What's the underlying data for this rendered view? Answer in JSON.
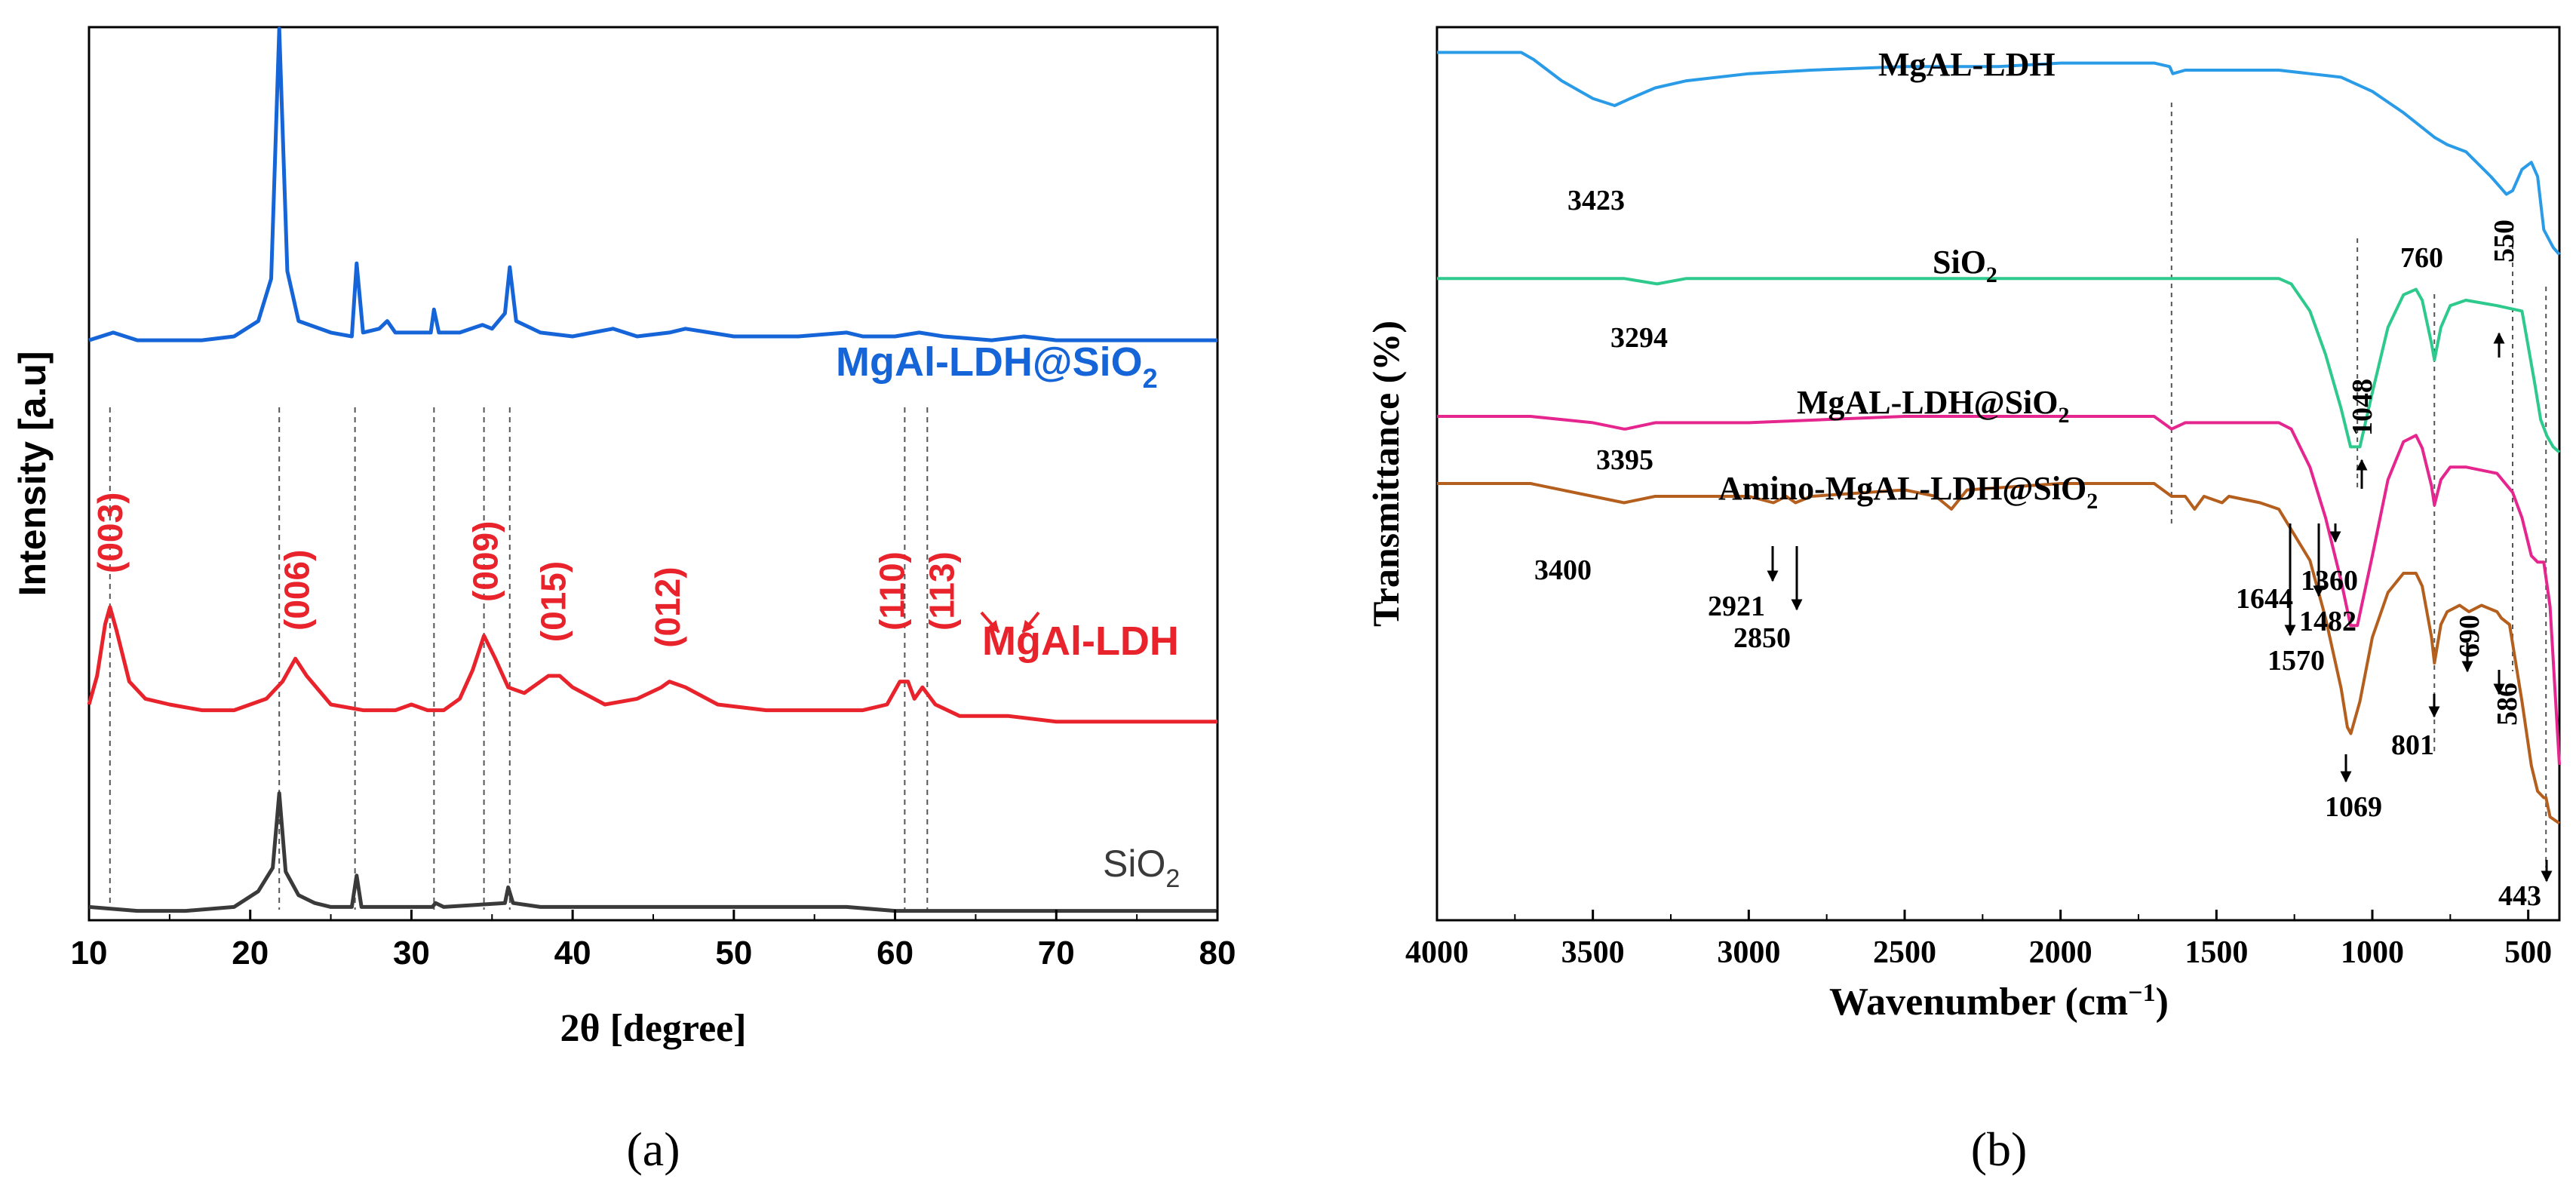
{
  "colors": {
    "blue": "#1565d8",
    "red": "#e8232b",
    "dark": "#3a3a3a",
    "sky": "#2a9be6",
    "green": "#2ec98c",
    "magenta": "#e6268f",
    "brown": "#b45f1e",
    "peak_label": "#e8232b"
  },
  "chart_data": [
    {
      "type": "line",
      "panel_label": "(a)",
      "xlabel_sym": "2θ",
      "xlabel_rest": " [degree]",
      "ylabel": "Intensity [a.u]",
      "xlim": [
        10,
        80
      ],
      "xticks": [
        "10",
        "20",
        "30",
        "40",
        "50",
        "60",
        "70",
        "80"
      ],
      "y_ticks": "none",
      "series": [
        {
          "name": "MgAl-LDH@SiO₂",
          "color": "blue",
          "x": [
            10,
            11.5,
            13,
            15,
            17,
            19,
            20.5,
            21.3,
            21.8,
            22.3,
            23,
            25,
            26.3,
            26.6,
            27,
            28,
            28.5,
            29,
            30,
            31.2,
            31.4,
            31.7,
            33,
            34.4,
            35,
            35.8,
            36.1,
            36.5,
            38,
            40,
            42.5,
            44,
            46,
            47,
            48.5,
            50,
            52,
            54,
            57,
            58,
            60,
            61.5,
            63,
            66,
            68,
            70,
            75,
            80
          ],
          "y": [
            0.19,
            0.21,
            0.19,
            0.19,
            0.19,
            0.2,
            0.24,
            0.35,
            1.0,
            0.37,
            0.24,
            0.21,
            0.2,
            0.39,
            0.21,
            0.22,
            0.24,
            0.21,
            0.21,
            0.21,
            0.27,
            0.21,
            0.21,
            0.23,
            0.22,
            0.26,
            0.38,
            0.24,
            0.21,
            0.2,
            0.22,
            0.2,
            0.21,
            0.22,
            0.21,
            0.2,
            0.2,
            0.2,
            0.21,
            0.2,
            0.2,
            0.21,
            0.2,
            0.19,
            0.2,
            0.19,
            0.19,
            0.19
          ]
        },
        {
          "name": "MgAl-LDH",
          "color": "red",
          "x": [
            10,
            10.5,
            11,
            11.3,
            11.7,
            12.5,
            13.5,
            15,
            17,
            19,
            20,
            21,
            22,
            22.8,
            23.5,
            25,
            27,
            29,
            30,
            31,
            32,
            33,
            33.8,
            34.5,
            35.2,
            36,
            37,
            38.5,
            39.2,
            40,
            42,
            44,
            45.5,
            46,
            47,
            49,
            52,
            55,
            58,
            59.5,
            60.3,
            60.8,
            61.2,
            61.7,
            62.5,
            64,
            67,
            70,
            75,
            80
          ],
          "y": [
            0.2,
            0.25,
            0.34,
            0.37,
            0.33,
            0.24,
            0.21,
            0.2,
            0.19,
            0.19,
            0.2,
            0.21,
            0.24,
            0.28,
            0.25,
            0.2,
            0.19,
            0.19,
            0.2,
            0.19,
            0.19,
            0.21,
            0.26,
            0.32,
            0.28,
            0.23,
            0.22,
            0.25,
            0.25,
            0.23,
            0.2,
            0.21,
            0.23,
            0.24,
            0.23,
            0.2,
            0.19,
            0.19,
            0.19,
            0.2,
            0.24,
            0.24,
            0.21,
            0.23,
            0.2,
            0.18,
            0.18,
            0.17,
            0.17,
            0.17
          ]
        },
        {
          "name": "SiO₂",
          "color": "dark",
          "x": [
            10,
            13,
            16,
            19,
            20.5,
            21.4,
            21.8,
            22.2,
            23,
            24,
            25,
            26.3,
            26.6,
            26.9,
            28,
            31.3,
            31.5,
            32,
            35.8,
            36,
            36.3,
            38,
            42.5,
            45,
            50,
            57,
            60,
            65,
            70,
            75,
            80
          ],
          "y": [
            0.03,
            0.02,
            0.02,
            0.03,
            0.07,
            0.13,
            0.32,
            0.12,
            0.06,
            0.04,
            0.03,
            0.03,
            0.11,
            0.03,
            0.03,
            0.03,
            0.04,
            0.03,
            0.04,
            0.08,
            0.04,
            0.03,
            0.03,
            0.03,
            0.03,
            0.03,
            0.02,
            0.02,
            0.02,
            0.02,
            0.02
          ]
        }
      ],
      "series_labels": [
        {
          "text": "MgAl-LDH@SiO",
          "sub": "2",
          "color": "blue"
        },
        {
          "text": "MgAl-LDH",
          "sub": "",
          "color": "red"
        },
        {
          "text": "SiO",
          "sub": "2",
          "color": "dark"
        }
      ],
      "guide_lines_x": [
        11.3,
        21.8,
        26.5,
        31.4,
        34.5,
        36.1,
        60.6,
        62.0
      ],
      "peak_labels": [
        {
          "text": "(003)",
          "x": 11.3,
          "y": 0.4
        },
        {
          "text": "(006)",
          "x": 22.9,
          "y": 0.3
        },
        {
          "text": "(009)",
          "x": 34.6,
          "y": 0.35
        },
        {
          "text": "(015)",
          "x": 38.8,
          "y": 0.28
        },
        {
          "text": "(012)",
          "x": 45.9,
          "y": 0.27
        },
        {
          "text": "(110)",
          "x": 59.8,
          "y": 0.3
        },
        {
          "text": "(113)",
          "x": 62.9,
          "y": 0.3
        }
      ]
    },
    {
      "type": "line",
      "panel_label": "(b)",
      "xlabel": "Wavenumber (cm",
      "xlabel_sup": "−1",
      "xlabel_end": ")",
      "ylabel": "Transmittance (%)",
      "xlim": [
        4000,
        400
      ],
      "xticks": [
        "4000",
        "3500",
        "3000",
        "2500",
        "2000",
        "1500",
        "1000",
        "500"
      ],
      "y_ticks": "none",
      "series": [
        {
          "name": "MgAL-LDH",
          "color": "sky",
          "x": [
            4000,
            3730,
            3690,
            3600,
            3500,
            3430,
            3380,
            3300,
            3200,
            3000,
            2800,
            2500,
            2200,
            2000,
            1800,
            1700,
            1650,
            1640,
            1600,
            1300,
            1200,
            1100,
            1000,
            900,
            800,
            760,
            700,
            620,
            570,
            550,
            520,
            490,
            470,
            450,
            420,
            400
          ],
          "y": [
            0.95,
            0.95,
            0.93,
            0.87,
            0.82,
            0.8,
            0.82,
            0.85,
            0.87,
            0.89,
            0.9,
            0.91,
            0.91,
            0.92,
            0.92,
            0.92,
            0.91,
            0.89,
            0.9,
            0.9,
            0.89,
            0.88,
            0.84,
            0.78,
            0.71,
            0.69,
            0.67,
            0.6,
            0.55,
            0.56,
            0.62,
            0.64,
            0.6,
            0.45,
            0.4,
            0.38
          ]
        },
        {
          "name": "SiO₂",
          "color": "green",
          "x": [
            4000,
            3600,
            3400,
            3294,
            3200,
            3000,
            2500,
            2000,
            1500,
            1300,
            1260,
            1200,
            1150,
            1100,
            1070,
            1040,
            1000,
            950,
            900,
            860,
            840,
            810,
            801,
            780,
            750,
            700,
            600,
            520,
            480,
            460,
            440,
            420,
            400
          ],
          "y": [
            0.69,
            0.69,
            0.69,
            0.68,
            0.69,
            0.69,
            0.69,
            0.69,
            0.69,
            0.69,
            0.68,
            0.63,
            0.55,
            0.45,
            0.38,
            0.38,
            0.48,
            0.6,
            0.66,
            0.67,
            0.65,
            0.57,
            0.54,
            0.6,
            0.64,
            0.65,
            0.64,
            0.63,
            0.5,
            0.43,
            0.4,
            0.38,
            0.37
          ]
        },
        {
          "name": "MgAL-LDH@SiO₂",
          "color": "magenta",
          "x": [
            4000,
            3700,
            3500,
            3400,
            3395,
            3300,
            3000,
            2500,
            2000,
            1700,
            1644,
            1600,
            1300,
            1260,
            1200,
            1150,
            1100,
            1070,
            1048,
            1000,
            950,
            900,
            860,
            840,
            810,
            801,
            780,
            750,
            700,
            600,
            550,
            520,
            490,
            470,
            450,
            430,
            400
          ],
          "y": [
            0.6,
            0.6,
            0.59,
            0.58,
            0.58,
            0.59,
            0.59,
            0.6,
            0.6,
            0.6,
            0.58,
            0.59,
            0.59,
            0.58,
            0.52,
            0.44,
            0.34,
            0.27,
            0.27,
            0.38,
            0.5,
            0.56,
            0.57,
            0.55,
            0.49,
            0.46,
            0.5,
            0.52,
            0.52,
            0.51,
            0.48,
            0.44,
            0.38,
            0.37,
            0.37,
            0.3,
            0.05
          ]
        },
        {
          "name": "Amino-MgAL-LDH@SiO₂",
          "color": "brown",
          "x": [
            4000,
            3700,
            3500,
            3400,
            3300,
            3000,
            2921,
            2880,
            2850,
            2800,
            2500,
            2400,
            2350,
            2300,
            2000,
            1700,
            1644,
            1600,
            1570,
            1540,
            1482,
            1460,
            1360,
            1300,
            1200,
            1150,
            1100,
            1080,
            1069,
            1040,
            1000,
            950,
            900,
            860,
            840,
            810,
            801,
            780,
            760,
            720,
            690,
            650,
            600,
            586,
            560,
            520,
            490,
            470,
            450,
            443,
            430,
            400
          ],
          "y": [
            0.54,
            0.54,
            0.52,
            0.51,
            0.52,
            0.52,
            0.51,
            0.52,
            0.51,
            0.52,
            0.53,
            0.52,
            0.5,
            0.53,
            0.54,
            0.54,
            0.52,
            0.52,
            0.5,
            0.52,
            0.51,
            0.52,
            0.51,
            0.5,
            0.42,
            0.33,
            0.22,
            0.16,
            0.15,
            0.2,
            0.3,
            0.37,
            0.4,
            0.4,
            0.38,
            0.3,
            0.26,
            0.32,
            0.34,
            0.35,
            0.34,
            0.35,
            0.34,
            0.33,
            0.32,
            0.2,
            0.1,
            0.06,
            0.05,
            0.05,
            0.02,
            0.01
          ]
        }
      ],
      "series_labels": [
        {
          "text": "MgAL-LDH",
          "sub": ""
        },
        {
          "text": "SiO",
          "sub": "2"
        },
        {
          "text": "MgAL-LDH@SiO",
          "sub": "2"
        },
        {
          "text": "Amino-MgAL-LDH@SiO",
          "sub": "2"
        }
      ],
      "guide_lines_x": [
        1644,
        1048,
        801,
        550,
        443
      ],
      "band_labels": [
        {
          "text": "3423",
          "x": 3423
        },
        {
          "text": "760",
          "x": 760
        },
        {
          "text": "550",
          "x": 550
        },
        {
          "text": "3294",
          "x": 3294
        },
        {
          "text": "1048",
          "x": 1048
        },
        {
          "text": "3395",
          "x": 3395
        },
        {
          "text": "3400",
          "x": 3400
        },
        {
          "text": "2921",
          "x": 2921
        },
        {
          "text": "2850",
          "x": 2850
        },
        {
          "text": "1644",
          "x": 1644
        },
        {
          "text": "1570",
          "x": 1570
        },
        {
          "text": "1482",
          "x": 1482
        },
        {
          "text": "1360",
          "x": 1360
        },
        {
          "text": "1069",
          "x": 1069
        },
        {
          "text": "801",
          "x": 801
        },
        {
          "text": "690",
          "x": 690
        },
        {
          "text": "586",
          "x": 586
        },
        {
          "text": "443",
          "x": 443
        }
      ]
    }
  ]
}
